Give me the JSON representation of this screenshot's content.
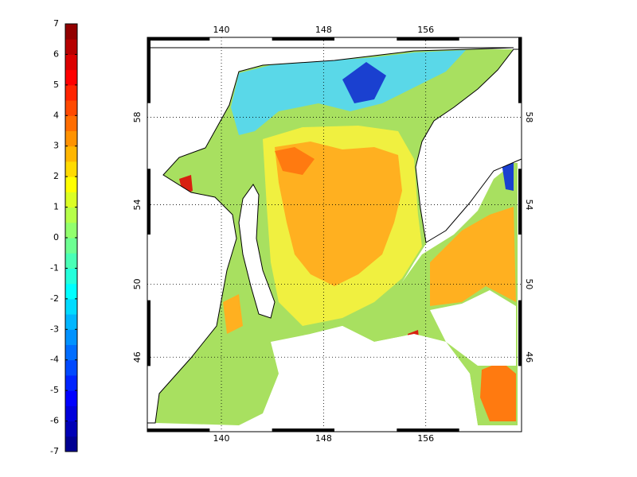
{
  "chart_data": {
    "type": "map",
    "colormap": "jet",
    "clim": [
      -7,
      7
    ],
    "cticks": [
      -7,
      -6,
      -5,
      -4,
      -3,
      -2,
      -1,
      0,
      1,
      2,
      3,
      4,
      5,
      6,
      7
    ],
    "xlim": [
      134.2,
      163.5
    ],
    "xticks": [
      140,
      148,
      156
    ],
    "ylim": [
      41.6,
      61.3
    ],
    "yticks": [
      46,
      50,
      54,
      58
    ],
    "projection": "mercator",
    "grid": true
  }
}
